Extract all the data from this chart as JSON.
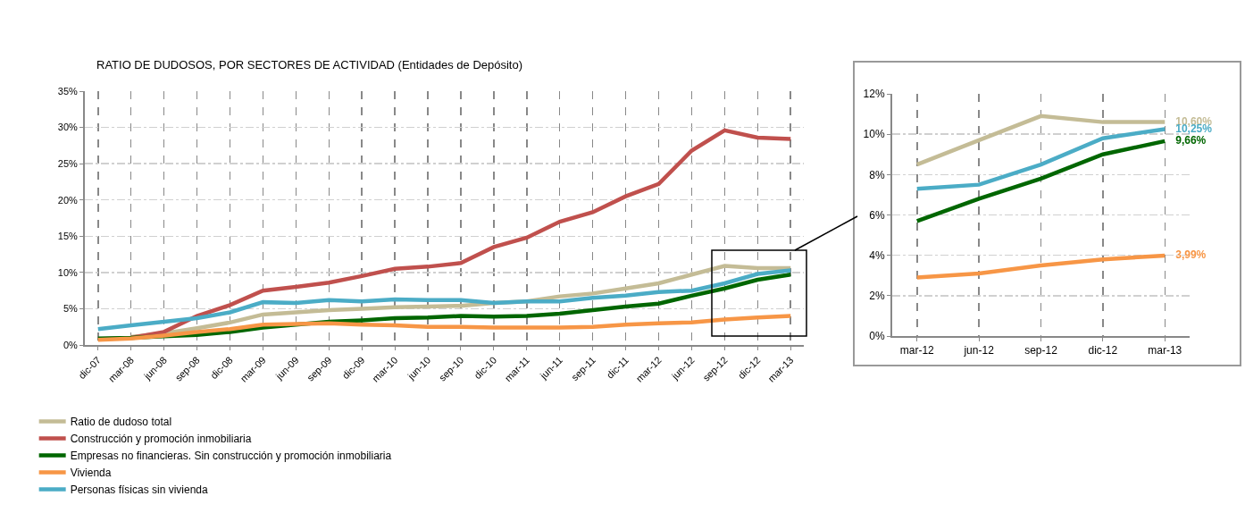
{
  "chart_data": [
    {
      "type": "line",
      "title": "RATIO DE DUDOSOS, POR SECTORES DE ACTIVIDAD (Entidades de Depósito)",
      "categories": [
        "dic-07",
        "mar-08",
        "jun-08",
        "sep-08",
        "dic-08",
        "mar-09",
        "jun-09",
        "sep-09",
        "dic-09",
        "mar-10",
        "jun-10",
        "sep-10",
        "dic-10",
        "mar-11",
        "jun-11",
        "sep-11",
        "dic-11",
        "mar-12",
        "jun-12",
        "sep-12",
        "dic-12",
        "mar-13"
      ],
      "series": [
        {
          "name": "Ratio de dudoso total",
          "color": "#c4bc96",
          "values": [
            null,
            1.1,
            1.6,
            2.3,
            3.1,
            4.2,
            4.5,
            4.8,
            5.0,
            5.2,
            5.3,
            5.4,
            5.8,
            6.0,
            6.7,
            7.1,
            7.8,
            8.5,
            9.7,
            10.9,
            10.6,
            10.6
          ]
        },
        {
          "name": "Construcción y promoción inmobiliaria",
          "color": "#c0504d",
          "values": [
            0.8,
            1.0,
            1.8,
            4.0,
            5.5,
            7.5,
            8.0,
            8.6,
            9.5,
            10.5,
            10.8,
            11.3,
            13.5,
            14.8,
            17.0,
            18.3,
            20.5,
            22.2,
            26.8,
            29.6,
            28.6,
            28.4
          ]
        },
        {
          "name": "Empresas no financieras. Sin construcción y promoción inmobiliaria",
          "color": "#006600",
          "values": [
            0.9,
            1.0,
            1.2,
            1.4,
            1.8,
            2.4,
            null,
            3.2,
            3.4,
            3.7,
            3.8,
            4.0,
            3.9,
            4.0,
            4.3,
            4.8,
            5.3,
            5.7,
            6.8,
            7.8,
            9.0,
            9.7
          ]
        },
        {
          "name": "Vivienda",
          "color": "#f79646",
          "values": [
            0.7,
            0.9,
            1.3,
            1.8,
            2.2,
            2.8,
            2.9,
            3.0,
            2.8,
            2.7,
            2.5,
            2.5,
            2.4,
            2.4,
            2.4,
            2.5,
            2.8,
            3.0,
            3.1,
            3.5,
            3.8,
            4.0
          ]
        },
        {
          "name": "Personas físicas sin vivienda",
          "color": "#4bacc6",
          "values": [
            2.2,
            2.7,
            3.2,
            3.7,
            4.5,
            5.9,
            5.8,
            6.2,
            6.0,
            6.3,
            6.2,
            6.2,
            5.8,
            6.0,
            6.0,
            6.5,
            6.8,
            7.3,
            7.5,
            8.5,
            9.8,
            10.3
          ]
        }
      ],
      "ylim": [
        0,
        35
      ],
      "yticks": [
        {
          "value": 0,
          "label": "0%"
        },
        {
          "value": 5,
          "label": "5%"
        },
        {
          "value": 10,
          "label": "10%"
        },
        {
          "value": 15,
          "label": "15%"
        },
        {
          "value": 20,
          "label": "20%"
        },
        {
          "value": 25,
          "label": "25%"
        },
        {
          "value": 30,
          "label": "30%"
        },
        {
          "value": 35,
          "label": "35%"
        }
      ],
      "grid": true,
      "legend": "bottom",
      "marker": "none",
      "line_style": "solid"
    },
    {
      "type": "line",
      "categories": [
        "mar-12",
        "jun-12",
        "sep-12",
        "dic-12",
        "mar-13"
      ],
      "series": [
        {
          "color": "#c4bc96",
          "values": [
            8.5,
            9.7,
            10.9,
            10.6,
            10.6
          ],
          "value_labels": [
            null,
            null,
            null,
            null,
            "10,60%"
          ]
        },
        {
          "color": "#4bacc6",
          "values": [
            7.3,
            7.5,
            8.5,
            9.8,
            10.25
          ],
          "value_labels": [
            null,
            null,
            null,
            null,
            "10,25%"
          ]
        },
        {
          "color": "#006600",
          "values": [
            5.7,
            6.8,
            7.8,
            9.0,
            9.66
          ],
          "value_labels": [
            null,
            null,
            null,
            null,
            "9,66%"
          ]
        },
        {
          "color": "#f79646",
          "values": [
            2.9,
            3.1,
            3.5,
            3.8,
            3.99
          ],
          "value_labels": [
            null,
            null,
            null,
            null,
            "3,99%"
          ]
        }
      ],
      "ylim": [
        0,
        12
      ],
      "yticks": [
        {
          "value": 0,
          "label": "0%"
        },
        {
          "value": 2,
          "label": "2%"
        },
        {
          "value": 4,
          "label": "4%"
        },
        {
          "value": 6,
          "label": "6%"
        },
        {
          "value": 8,
          "label": "8%"
        },
        {
          "value": 10,
          "label": "10%"
        },
        {
          "value": 12,
          "label": "12%"
        }
      ],
      "grid": true,
      "legend": false,
      "marker": "none",
      "line_style": "solid"
    }
  ]
}
